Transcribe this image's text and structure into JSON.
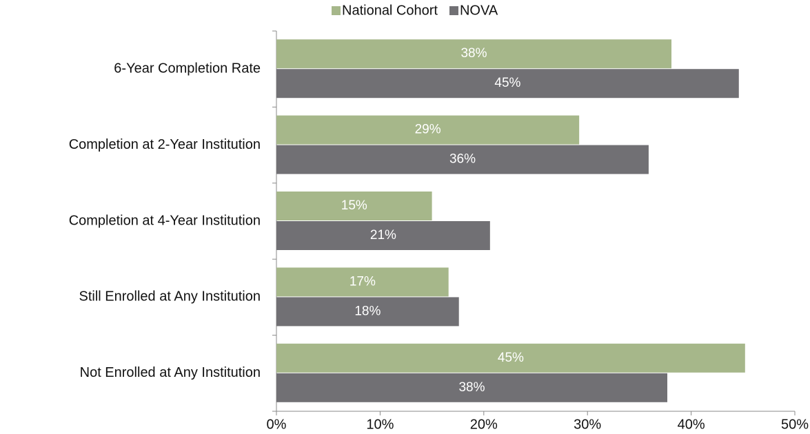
{
  "chart_data": {
    "type": "hbar",
    "categories": [
      "6-Year Completion Rate",
      "Completion at 2-Year Institution",
      "Completion at 4-Year Institution",
      "Still Enrolled at Any Institution",
      "Not Enrolled at Any Institution"
    ],
    "series": [
      {
        "name": "National Cohort",
        "color": "#a6b78a",
        "values": [
          38.1,
          29.2,
          15.0,
          16.6,
          45.2
        ],
        "value_labels": [
          "38%",
          "29%",
          "15%",
          "17%",
          "45%"
        ]
      },
      {
        "name": "NOVA",
        "color": "#717074",
        "values": [
          44.6,
          35.9,
          20.6,
          17.6,
          37.7
        ],
        "value_labels": [
          "45%",
          "36%",
          "21%",
          "18%",
          "38%"
        ]
      }
    ],
    "xlim": [
      0,
      50
    ],
    "xticks": [
      {
        "value": 0,
        "label": "0%"
      },
      {
        "value": 10,
        "label": "10%"
      },
      {
        "value": 20,
        "label": "20%"
      },
      {
        "value": 30,
        "label": "30%"
      },
      {
        "value": 40,
        "label": "40%"
      },
      {
        "value": 50,
        "label": "50%"
      }
    ],
    "legend": "top"
  }
}
